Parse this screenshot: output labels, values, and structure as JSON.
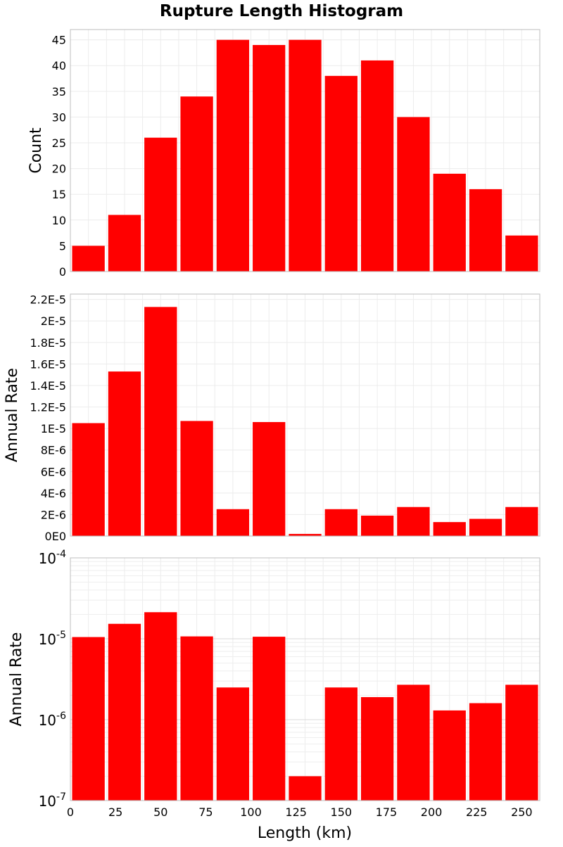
{
  "chart_data": {
    "type": "bar",
    "title": "Rupture Length Histogram",
    "xlabel": "Length (km)",
    "x_ticks": [
      "0",
      "25",
      "50",
      "75",
      "100",
      "125",
      "150",
      "175",
      "200",
      "225",
      "250"
    ],
    "xlim": [
      0,
      260
    ],
    "bin_width": 20,
    "x_centers": [
      10,
      30,
      50,
      70,
      90,
      110,
      130,
      150,
      170,
      190,
      210,
      230,
      250
    ],
    "bar_color": "#ff0000",
    "grid": true,
    "panels": [
      {
        "ylabel": "Count",
        "yscale": "linear",
        "ylim": [
          0,
          47
        ],
        "y_ticks": [
          "0",
          "5",
          "10",
          "15",
          "20",
          "25",
          "30",
          "35",
          "40",
          "45"
        ],
        "values": [
          5,
          11,
          26,
          34,
          45,
          44,
          45,
          38,
          41,
          30,
          19,
          16,
          7
        ]
      },
      {
        "ylabel": "Annual Rate",
        "yscale": "linear",
        "ylim": [
          0,
          2.25e-05
        ],
        "y_ticks": [
          "0E0",
          "2E-6",
          "4E-6",
          "6E-6",
          "8E-6",
          "1E-5",
          "1.2E-5",
          "1.4E-5",
          "1.6E-5",
          "1.8E-5",
          "2E-5",
          "2.2E-5"
        ],
        "values": [
          1.05e-05,
          1.53e-05,
          2.13e-05,
          1.07e-05,
          2.5e-06,
          1.06e-05,
          2e-07,
          2.5e-06,
          1.9e-06,
          2.7e-06,
          1.3e-06,
          1.6e-06,
          2.7e-06
        ]
      },
      {
        "ylabel": "Annual Rate",
        "yscale": "log",
        "ylim": [
          1e-07,
          0.0001
        ],
        "y_ticks": [
          {
            "base": "10",
            "exp": "-7"
          },
          {
            "base": "10",
            "exp": "-6"
          },
          {
            "base": "10",
            "exp": "-5"
          },
          {
            "base": "10",
            "exp": "-4"
          }
        ],
        "values": [
          1.05e-05,
          1.53e-05,
          2.13e-05,
          1.07e-05,
          2.5e-06,
          1.06e-05,
          2e-07,
          2.5e-06,
          1.9e-06,
          2.7e-06,
          1.3e-06,
          1.6e-06,
          2.7e-06
        ]
      }
    ]
  }
}
